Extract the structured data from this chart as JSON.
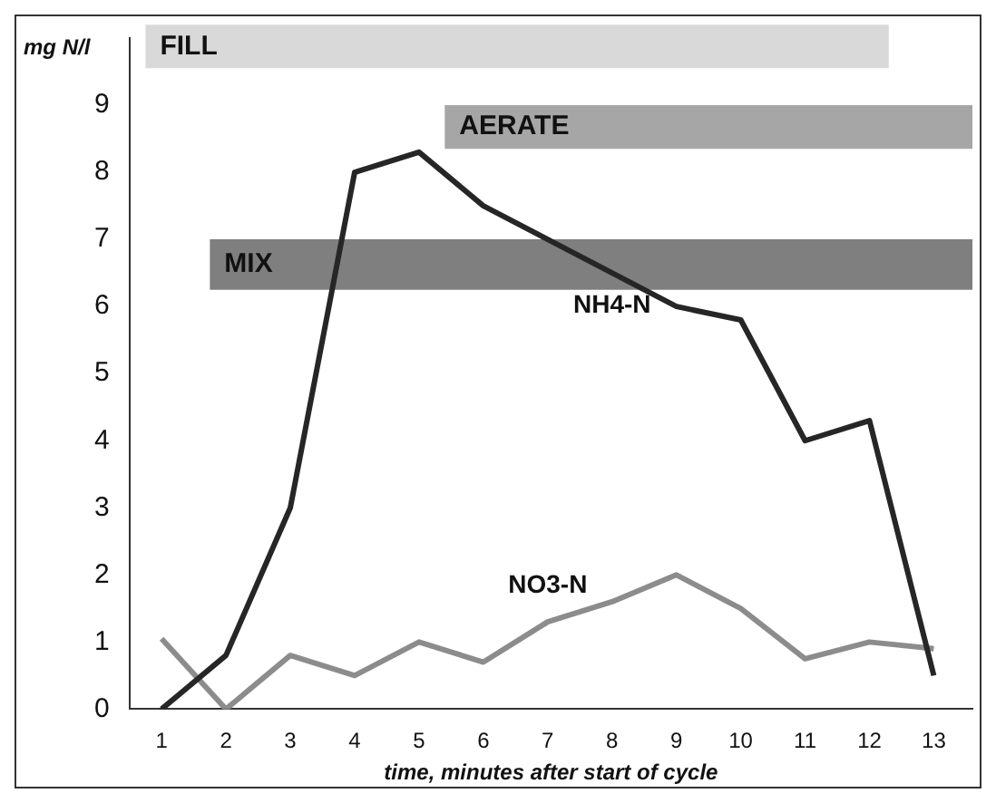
{
  "chart_data": {
    "type": "line",
    "xlabel": "time, minutes after start of cycle",
    "ylabel": "mg N/l",
    "x": [
      1,
      2,
      3,
      4,
      5,
      6,
      7,
      8,
      9,
      10,
      11,
      12,
      13
    ],
    "series": [
      {
        "name": "NH4-N",
        "color": "#262626",
        "values": [
          0,
          0.8,
          3,
          8,
          8.3,
          7.5,
          7,
          6.5,
          6,
          5.8,
          4,
          4.3,
          0.5
        ]
      },
      {
        "name": "NO3-N",
        "color": "#8c8c8c",
        "values": [
          1.05,
          0,
          0.8,
          0.5,
          1,
          0.7,
          1.3,
          1.6,
          2,
          1.5,
          0.75,
          1,
          0.9
        ]
      }
    ],
    "bands": [
      {
        "axis": "x",
        "from": 0.75,
        "to": 12.3,
        "label": "FILL",
        "color": "#d9d9d9"
      },
      {
        "axis": "x",
        "from": 5.4,
        "to": 13.6,
        "label": "AERATE",
        "color": "#a6a6a6"
      },
      {
        "axis": "x",
        "from": 1.75,
        "to": 13.6,
        "label": "MIX",
        "color": "#7f7f7f"
      }
    ],
    "xlim": [
      0.5,
      13.6
    ],
    "xticks": [
      1,
      2,
      3,
      4,
      5,
      6,
      7,
      8,
      9,
      10,
      11,
      12,
      13
    ],
    "ylim": [
      0,
      10
    ],
    "yticks": [
      0,
      1,
      2,
      3,
      4,
      5,
      6,
      7,
      8,
      9
    ],
    "grid": false,
    "legend": false,
    "marker": "none",
    "line_style": "solid"
  }
}
